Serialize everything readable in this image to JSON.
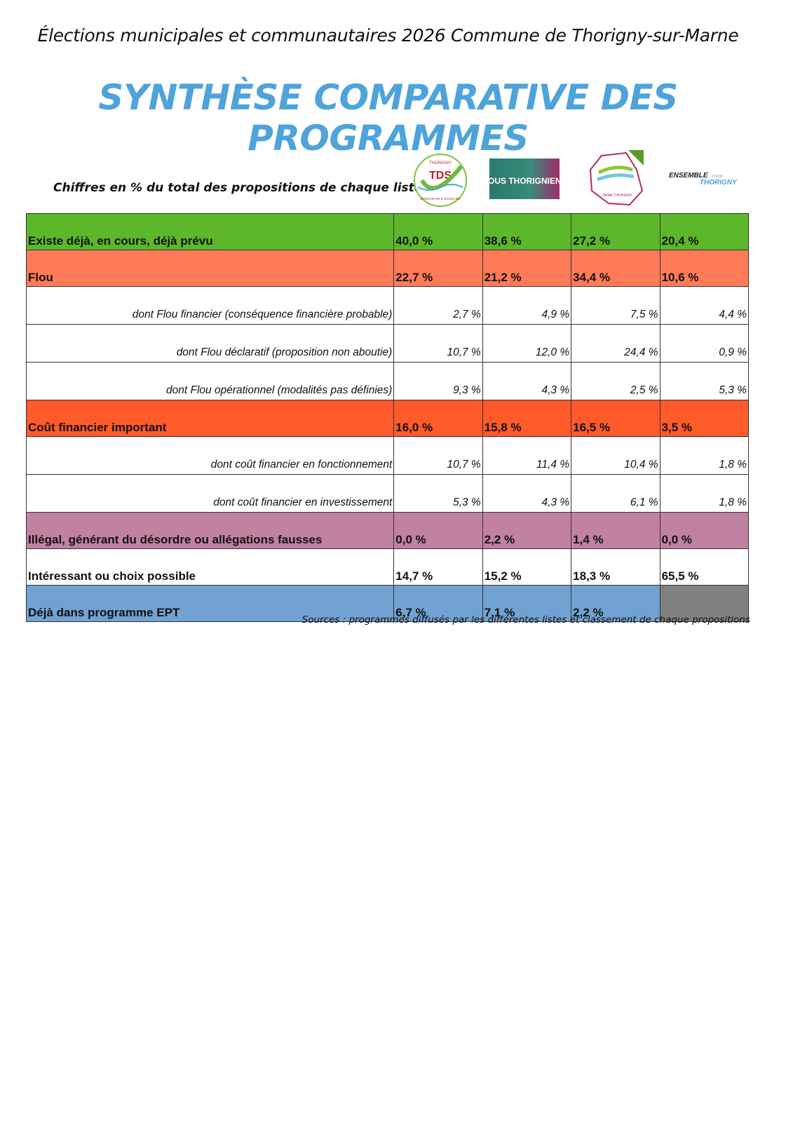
{
  "header": {
    "subtitle": "Élections municipales et communautaires 2026 Commune de Thorigny-sur-Marne",
    "title": "SYNTHÈSE COMPARATIVE DES PROGRAMMES",
    "note": "Chiffres en % du total des propositions de chaque liste"
  },
  "logos": [
    {
      "name": "tds-logo",
      "text": "TDS",
      "arc_top": "THORIGNY",
      "arc_bottom": "DÉMOCRATE & SOLIDAIRE"
    },
    {
      "name": "nous-thorigniens-logo",
      "text": "NOUS THORIGNIENS"
    },
    {
      "name": "j-aime-thorigny-logo",
      "text": "J'AIME THORIGNY"
    },
    {
      "name": "ensemble-pour-thorigny-logo",
      "text1": "ENSEMBLE",
      "text2": "POUR",
      "text3": "THORIGNY"
    }
  ],
  "colors": {
    "existe": "#5cb82a",
    "flou": "#ff7b58",
    "cout": "#ff5a2a",
    "illegal": "#c082a0",
    "ept": "#72a2d2",
    "empty": "#808080",
    "title": "#4ea3da"
  },
  "rows": [
    {
      "label": "Existe déjà, en cours, déjà prévu",
      "type": "main",
      "color": "existe",
      "values": [
        "40,0 %",
        "38,6 %",
        "27,2 %",
        "20,4 %"
      ]
    },
    {
      "label": "Flou",
      "type": "main",
      "color": "flou",
      "values": [
        "22,7 %",
        "21,2 %",
        "34,4 %",
        "10,6 %"
      ]
    },
    {
      "label": "dont Flou financier (conséquence financière probable)",
      "type": "sub",
      "values": [
        "2,7 %",
        "4,9 %",
        "7,5 %",
        "4,4 %"
      ]
    },
    {
      "label": "dont Flou déclaratif (proposition non aboutie)",
      "type": "sub",
      "values": [
        "10,7 %",
        "12,0 %",
        "24,4 %",
        "0,9 %"
      ]
    },
    {
      "label": "dont Flou opérationnel (modalités pas définies)",
      "type": "sub",
      "values": [
        "9,3 %",
        "4,3 %",
        "2,5 %",
        "5,3 %"
      ]
    },
    {
      "label": "Coût financier important",
      "type": "main",
      "color": "cout",
      "values": [
        "16,0 %",
        "15,8 %",
        "16,5 %",
        "3,5 %"
      ]
    },
    {
      "label": "dont coût financier en fonctionnement",
      "type": "sub",
      "values": [
        "10,7 %",
        "11,4 %",
        "10,4 %",
        "1,8 %"
      ]
    },
    {
      "label": "dont coût financier en investissement",
      "type": "sub",
      "values": [
        "5,3 %",
        "4,3 %",
        "6,1 %",
        "1,8 %"
      ]
    },
    {
      "label": "Illégal, générant du désordre ou allégations fausses",
      "type": "main",
      "color": "illegal",
      "values": [
        "0,0 %",
        "2,2 %",
        "1,4 %",
        "0,0 %"
      ]
    },
    {
      "label": "Intéressant ou choix possible",
      "type": "main",
      "values": [
        "14,7 %",
        "15,2 %",
        "18,3 %",
        "65,5 %"
      ]
    },
    {
      "label": "Déjà dans programme EPT",
      "type": "main",
      "color": "ept",
      "values": [
        "6,7 %",
        "7,1 %",
        "2,2 %",
        ""
      ],
      "empty_last": true
    }
  ],
  "footer": {
    "sources": "Sources : programmes diffusés par les différentes listes et classement de chaque propositions"
  }
}
